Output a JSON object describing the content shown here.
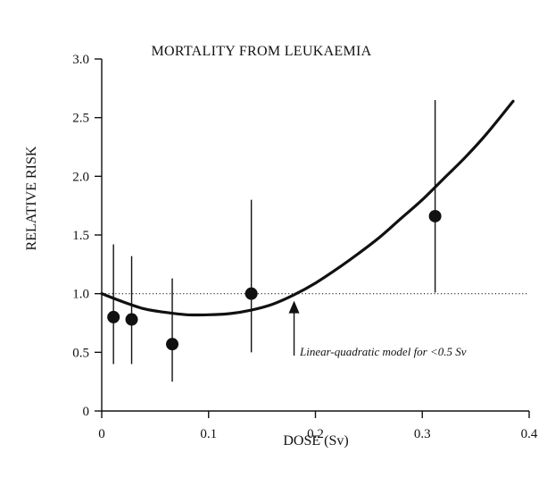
{
  "chart_data": {
    "type": "scatter",
    "title": "MORTALITY FROM LEUKAEMIA",
    "xlabel": "DOSE (Sv)",
    "ylabel": "RELATIVE RISK",
    "xlim": [
      0,
      0.4
    ],
    "ylim": [
      0,
      3.0
    ],
    "x_ticks": [
      0,
      0.1,
      0.2,
      0.3,
      0.4
    ],
    "x_tick_labels": [
      "0",
      "0.1",
      "0.2",
      "0.3",
      "0.4"
    ],
    "y_ticks": [
      0,
      0.5,
      1.0,
      1.5,
      2.0,
      2.5,
      3.0
    ],
    "y_tick_labels": [
      "0",
      "0.5",
      "1.0",
      "1.5",
      "2.0",
      "2.5",
      "3.0"
    ],
    "grid": false,
    "reference_line": {
      "y": 1.0,
      "style": "dotted"
    },
    "points": [
      {
        "x": 0.011,
        "y": 0.8,
        "lower": 0.4,
        "upper": 1.42
      },
      {
        "x": 0.028,
        "y": 0.78,
        "lower": 0.4,
        "upper": 1.32
      },
      {
        "x": 0.066,
        "y": 0.57,
        "lower": 0.25,
        "upper": 1.13
      },
      {
        "x": 0.14,
        "y": 1.0,
        "lower": 0.5,
        "upper": 1.8
      },
      {
        "x": 0.312,
        "y": 1.66,
        "lower": 1.01,
        "upper": 2.65
      }
    ],
    "model_curve": {
      "name": "Linear-quadratic model for <0.5 Sv",
      "x": [
        0,
        0.02,
        0.04,
        0.06,
        0.08,
        0.1,
        0.12,
        0.14,
        0.16,
        0.18,
        0.2,
        0.22,
        0.24,
        0.26,
        0.28,
        0.3,
        0.32,
        0.34,
        0.36,
        0.385
      ],
      "y": [
        1.0,
        0.93,
        0.87,
        0.84,
        0.82,
        0.82,
        0.83,
        0.86,
        0.91,
        0.99,
        1.09,
        1.21,
        1.34,
        1.48,
        1.64,
        1.8,
        1.98,
        2.16,
        2.36,
        2.64
      ]
    },
    "annotation": {
      "text": "Linear-quadratic model for <0.5 Sv",
      "points_to": {
        "x": 0.18,
        "y": 1.0
      }
    }
  }
}
